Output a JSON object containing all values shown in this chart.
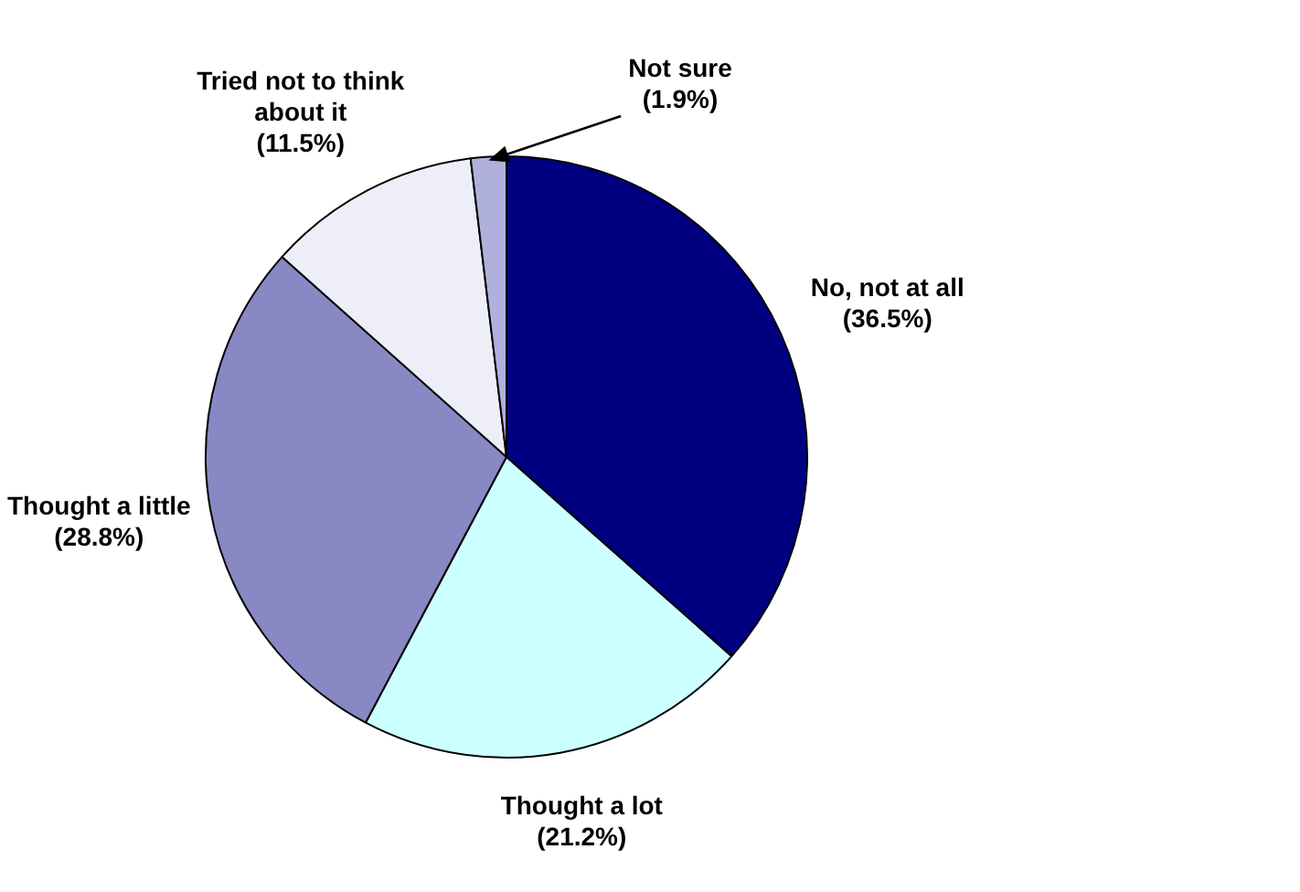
{
  "chart_data": {
    "type": "pie",
    "categories": [
      "No, not at all",
      "Thought a lot",
      "Thought a little",
      "Tried not to think about it",
      "Not sure"
    ],
    "values": [
      36.5,
      21.2,
      28.8,
      11.5,
      1.9
    ],
    "value_labels": [
      "(36.5%)",
      "(21.2%)",
      "(28.8%)",
      "(11.5%)",
      "(1.9%)"
    ],
    "colors": [
      "#000080",
      "#ccffff",
      "#8888c4",
      "#eeeef8",
      "#b0b0dc"
    ],
    "legend": false
  }
}
